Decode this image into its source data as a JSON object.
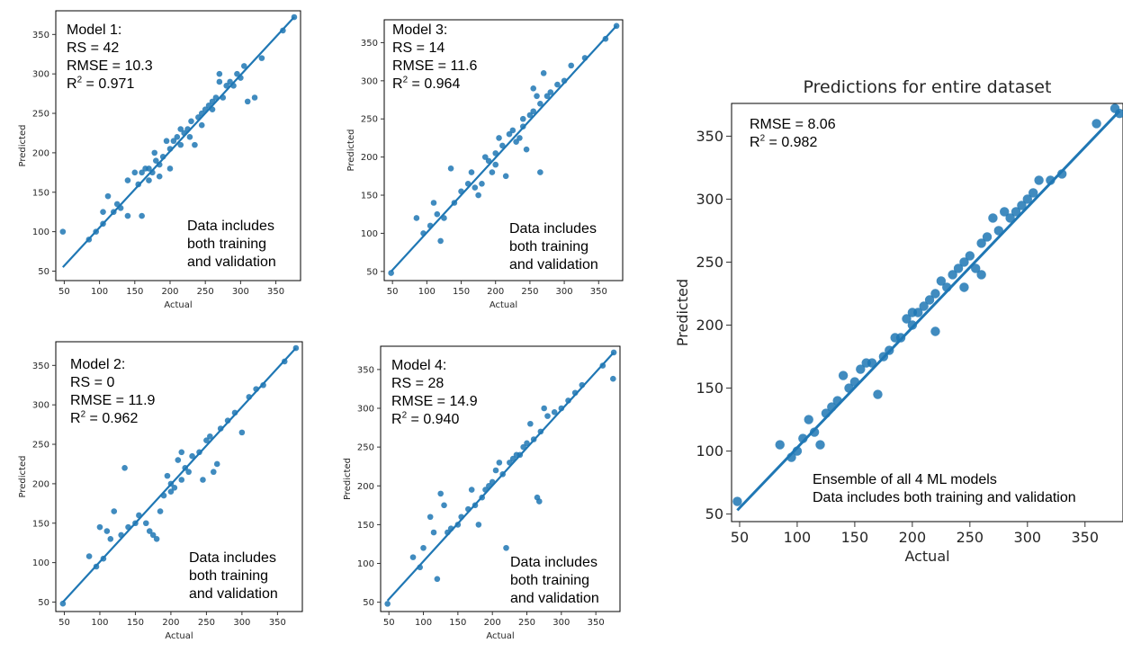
{
  "chart_data": [
    {
      "type": "scatter",
      "id": "model1",
      "xlabel": "Actual",
      "ylabel": "Predicted",
      "xlim": [
        38,
        385
      ],
      "ylim": [
        38,
        380
      ],
      "xticks": [
        50,
        100,
        150,
        200,
        250,
        300,
        350
      ],
      "yticks": [
        50,
        100,
        150,
        200,
        250,
        300,
        350
      ],
      "annotation": [
        "Model 1:",
        "RS = 42",
        "RMSE = 10.3",
        "R2 = 0.971"
      ],
      "note": [
        "Data includes",
        "both training",
        "and validation"
      ],
      "fit": [
        [
          48,
          55
        ],
        [
          376,
          372
        ]
      ],
      "points": [
        [
          48,
          100
        ],
        [
          85,
          90
        ],
        [
          95,
          100
        ],
        [
          105,
          110
        ],
        [
          105,
          125
        ],
        [
          112,
          145
        ],
        [
          120,
          125
        ],
        [
          125,
          135
        ],
        [
          130,
          130
        ],
        [
          140,
          120
        ],
        [
          150,
          175
        ],
        [
          155,
          160
        ],
        [
          160,
          175
        ],
        [
          165,
          180
        ],
        [
          170,
          180
        ],
        [
          175,
          175
        ],
        [
          178,
          200
        ],
        [
          180,
          190
        ],
        [
          185,
          185
        ],
        [
          190,
          195
        ],
        [
          195,
          215
        ],
        [
          200,
          205
        ],
        [
          205,
          215
        ],
        [
          210,
          220
        ],
        [
          215,
          230
        ],
        [
          220,
          225
        ],
        [
          225,
          230
        ],
        [
          228,
          220
        ],
        [
          230,
          240
        ],
        [
          235,
          210
        ],
        [
          240,
          245
        ],
        [
          245,
          250
        ],
        [
          250,
          255
        ],
        [
          255,
          260
        ],
        [
          260,
          265
        ],
        [
          265,
          270
        ],
        [
          270,
          300
        ],
        [
          275,
          270
        ],
        [
          280,
          285
        ],
        [
          285,
          290
        ],
        [
          290,
          285
        ],
        [
          295,
          300
        ],
        [
          300,
          295
        ],
        [
          305,
          310
        ],
        [
          310,
          265
        ],
        [
          320,
          270
        ],
        [
          330,
          320
        ],
        [
          360,
          355
        ],
        [
          376,
          372
        ],
        [
          200,
          180
        ],
        [
          185,
          170
        ],
        [
          170,
          165
        ],
        [
          140,
          165
        ],
        [
          160,
          120
        ],
        [
          215,
          210
        ],
        [
          245,
          235
        ],
        [
          260,
          255
        ],
        [
          270,
          290
        ]
      ]
    },
    {
      "type": "scatter",
      "id": "model3",
      "xlabel": "Actual",
      "ylabel": "Predicted",
      "xlim": [
        38,
        385
      ],
      "ylim": [
        38,
        380
      ],
      "xticks": [
        50,
        100,
        150,
        200,
        250,
        300,
        350
      ],
      "yticks": [
        50,
        100,
        150,
        200,
        250,
        300,
        350
      ],
      "annotation": [
        "Model 3:",
        "RS = 14",
        "RMSE = 11.6",
        "R2 = 0.964"
      ],
      "note": [
        "Data includes",
        "both training",
        "and validation"
      ],
      "fit": [
        [
          48,
          50
        ],
        [
          376,
          372
        ]
      ],
      "points": [
        [
          48,
          48
        ],
        [
          85,
          120
        ],
        [
          95,
          100
        ],
        [
          105,
          110
        ],
        [
          110,
          140
        ],
        [
          115,
          125
        ],
        [
          120,
          90
        ],
        [
          125,
          120
        ],
        [
          135,
          185
        ],
        [
          140,
          140
        ],
        [
          150,
          155
        ],
        [
          160,
          165
        ],
        [
          165,
          180
        ],
        [
          170,
          160
        ],
        [
          175,
          150
        ],
        [
          180,
          165
        ],
        [
          190,
          195
        ],
        [
          195,
          180
        ],
        [
          200,
          205
        ],
        [
          205,
          225
        ],
        [
          210,
          215
        ],
        [
          215,
          175
        ],
        [
          220,
          230
        ],
        [
          225,
          235
        ],
        [
          230,
          220
        ],
        [
          235,
          225
        ],
        [
          240,
          240
        ],
        [
          245,
          210
        ],
        [
          250,
          255
        ],
        [
          255,
          260
        ],
        [
          260,
          280
        ],
        [
          265,
          180
        ],
        [
          270,
          310
        ],
        [
          275,
          280
        ],
        [
          280,
          285
        ],
        [
          290,
          295
        ],
        [
          300,
          300
        ],
        [
          310,
          320
        ],
        [
          330,
          330
        ],
        [
          360,
          355
        ],
        [
          376,
          372
        ],
        [
          185,
          200
        ],
        [
          200,
          190
        ],
        [
          240,
          250
        ],
        [
          255,
          290
        ],
        [
          265,
          270
        ]
      ]
    },
    {
      "type": "scatter",
      "id": "model2",
      "xlabel": "Actual",
      "ylabel": "Predicted",
      "xlim": [
        38,
        385
      ],
      "ylim": [
        38,
        380
      ],
      "xticks": [
        50,
        100,
        150,
        200,
        250,
        300,
        350
      ],
      "yticks": [
        50,
        100,
        150,
        200,
        250,
        300,
        350
      ],
      "annotation": [
        "Model 2:",
        "RS = 0",
        "RMSE = 11.9",
        "R2 = 0.962"
      ],
      "note": [
        "Data includes",
        "both training",
        "and validation"
      ],
      "fit": [
        [
          48,
          50
        ],
        [
          376,
          372
        ]
      ],
      "points": [
        [
          48,
          48
        ],
        [
          85,
          108
        ],
        [
          95,
          95
        ],
        [
          100,
          145
        ],
        [
          105,
          105
        ],
        [
          110,
          140
        ],
        [
          115,
          130
        ],
        [
          120,
          165
        ],
        [
          130,
          135
        ],
        [
          135,
          220
        ],
        [
          140,
          145
        ],
        [
          150,
          150
        ],
        [
          155,
          160
        ],
        [
          165,
          150
        ],
        [
          170,
          140
        ],
        [
          175,
          135
        ],
        [
          180,
          130
        ],
        [
          185,
          165
        ],
        [
          190,
          185
        ],
        [
          195,
          210
        ],
        [
          200,
          200
        ],
        [
          205,
          195
        ],
        [
          210,
          230
        ],
        [
          215,
          240
        ],
        [
          220,
          220
        ],
        [
          225,
          215
        ],
        [
          230,
          235
        ],
        [
          240,
          240
        ],
        [
          245,
          205
        ],
        [
          250,
          255
        ],
        [
          255,
          260
        ],
        [
          260,
          215
        ],
        [
          265,
          225
        ],
        [
          270,
          270
        ],
        [
          280,
          280
        ],
        [
          290,
          290
        ],
        [
          300,
          265
        ],
        [
          310,
          310
        ],
        [
          320,
          320
        ],
        [
          330,
          325
        ],
        [
          360,
          355
        ],
        [
          376,
          372
        ],
        [
          200,
          190
        ],
        [
          215,
          205
        ]
      ]
    },
    {
      "type": "scatter",
      "id": "model4",
      "xlabel": "Actual",
      "ylabel": "Predicted",
      "xlim": [
        38,
        385
      ],
      "ylim": [
        38,
        380
      ],
      "xticks": [
        50,
        100,
        150,
        200,
        250,
        300,
        350
      ],
      "yticks": [
        50,
        100,
        150,
        200,
        250,
        300,
        350
      ],
      "annotation": [
        "Model 4:",
        "RS = 28",
        "RMSE = 14.9",
        "R2 = 0.940"
      ],
      "note": [
        "Data includes",
        "both training",
        "and validation"
      ],
      "fit": [
        [
          48,
          52
        ],
        [
          376,
          372
        ]
      ],
      "points": [
        [
          48,
          48
        ],
        [
          85,
          108
        ],
        [
          95,
          95
        ],
        [
          100,
          120
        ],
        [
          110,
          160
        ],
        [
          115,
          140
        ],
        [
          120,
          80
        ],
        [
          125,
          190
        ],
        [
          130,
          175
        ],
        [
          135,
          140
        ],
        [
          140,
          145
        ],
        [
          150,
          150
        ],
        [
          155,
          160
        ],
        [
          165,
          170
        ],
        [
          170,
          195
        ],
        [
          175,
          175
        ],
        [
          180,
          150
        ],
        [
          185,
          185
        ],
        [
          190,
          195
        ],
        [
          195,
          200
        ],
        [
          200,
          205
        ],
        [
          205,
          220
        ],
        [
          210,
          230
        ],
        [
          215,
          215
        ],
        [
          220,
          120
        ],
        [
          225,
          230
        ],
        [
          230,
          235
        ],
        [
          240,
          240
        ],
        [
          245,
          250
        ],
        [
          250,
          255
        ],
        [
          255,
          280
        ],
        [
          260,
          260
        ],
        [
          265,
          185
        ],
        [
          268,
          180
        ],
        [
          270,
          270
        ],
        [
          275,
          300
        ],
        [
          280,
          290
        ],
        [
          290,
          295
        ],
        [
          300,
          300
        ],
        [
          310,
          310
        ],
        [
          320,
          320
        ],
        [
          330,
          330
        ],
        [
          360,
          355
        ],
        [
          376,
          372
        ],
        [
          375,
          338
        ],
        [
          235,
          240
        ]
      ]
    },
    {
      "type": "scatter",
      "id": "ensemble",
      "title": "Predictions for entire dataset",
      "xlabel": "Actual",
      "ylabel": "Predicted",
      "xlim": [
        43,
        383
      ],
      "ylim": [
        44,
        376
      ],
      "xticks": [
        50,
        100,
        150,
        200,
        250,
        300,
        350
      ],
      "yticks": [
        50,
        100,
        150,
        200,
        250,
        300,
        350
      ],
      "annotation": [
        "RMSE = 8.06",
        "R2 = 0.982"
      ],
      "note": [
        "Ensemble of all 4 ML models",
        "Data includes both training and validation"
      ],
      "fit": [
        [
          48,
          53
        ],
        [
          380,
          370
        ]
      ],
      "points": [
        [
          48,
          60
        ],
        [
          85,
          105
        ],
        [
          95,
          95
        ],
        [
          100,
          100
        ],
        [
          105,
          110
        ],
        [
          110,
          125
        ],
        [
          115,
          115
        ],
        [
          120,
          105
        ],
        [
          125,
          130
        ],
        [
          130,
          135
        ],
        [
          135,
          140
        ],
        [
          140,
          160
        ],
        [
          145,
          150
        ],
        [
          150,
          155
        ],
        [
          155,
          165
        ],
        [
          160,
          170
        ],
        [
          165,
          170
        ],
        [
          170,
          145
        ],
        [
          175,
          175
        ],
        [
          180,
          180
        ],
        [
          185,
          190
        ],
        [
          190,
          190
        ],
        [
          195,
          205
        ],
        [
          200,
          200
        ],
        [
          205,
          210
        ],
        [
          210,
          215
        ],
        [
          215,
          220
        ],
        [
          220,
          225
        ],
        [
          225,
          235
        ],
        [
          230,
          230
        ],
        [
          235,
          240
        ],
        [
          240,
          245
        ],
        [
          245,
          250
        ],
        [
          250,
          255
        ],
        [
          255,
          245
        ],
        [
          260,
          265
        ],
        [
          265,
          270
        ],
        [
          270,
          285
        ],
        [
          275,
          275
        ],
        [
          280,
          290
        ],
        [
          285,
          285
        ],
        [
          290,
          290
        ],
        [
          295,
          295
        ],
        [
          300,
          300
        ],
        [
          305,
          305
        ],
        [
          310,
          315
        ],
        [
          320,
          315
        ],
        [
          330,
          320
        ],
        [
          360,
          360
        ],
        [
          376,
          372
        ],
        [
          380,
          368
        ],
        [
          245,
          230
        ],
        [
          260,
          240
        ],
        [
          200,
          210
        ],
        [
          220,
          195
        ]
      ]
    }
  ]
}
